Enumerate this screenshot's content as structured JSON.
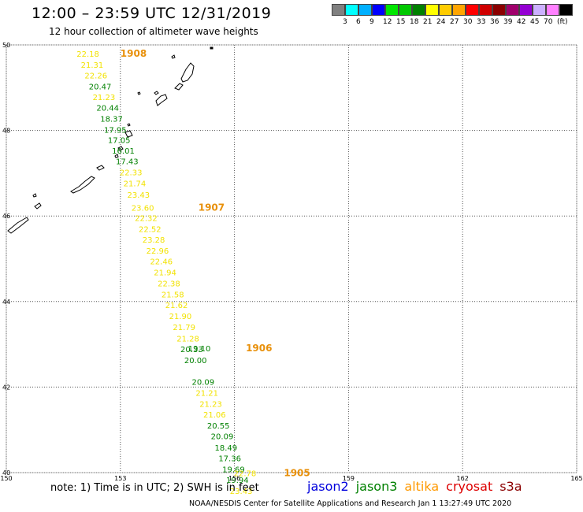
{
  "header": {
    "title": "12:00 – 23:59 UTC 12/31/2019",
    "subtitle": "12 hour collection of altimeter wave heights"
  },
  "legend": {
    "unit": "(ft)",
    "bins": [
      {
        "label": "",
        "color": "#808080"
      },
      {
        "label": "3",
        "color": "#00ffff"
      },
      {
        "label": "6",
        "color": "#00b0ff"
      },
      {
        "label": "9",
        "color": "#0000ff"
      },
      {
        "label": "12",
        "color": "#00e600"
      },
      {
        "label": "15",
        "color": "#00c800"
      },
      {
        "label": "18",
        "color": "#008000"
      },
      {
        "label": "21",
        "color": "#ffff00"
      },
      {
        "label": "24",
        "color": "#ffcc00"
      },
      {
        "label": "27",
        "color": "#ffa500"
      },
      {
        "label": "30",
        "color": "#ff0000"
      },
      {
        "label": "33",
        "color": "#d00000"
      },
      {
        "label": "36",
        "color": "#8b0000"
      },
      {
        "label": "39",
        "color": "#a0006c"
      },
      {
        "label": "42",
        "color": "#9400d3"
      },
      {
        "label": "45",
        "color": "#ccb0ff"
      },
      {
        "label": "70",
        "color": "#ff80ff"
      },
      {
        "label": "",
        "color": "#000000"
      }
    ]
  },
  "map": {
    "lon_range": [
      150,
      165
    ],
    "lat_range": [
      40,
      50
    ],
    "lon_ticks": [
      "150",
      "153",
      "156",
      "159",
      "162",
      "165"
    ],
    "lat_ticks": [
      "40",
      "42",
      "44",
      "46",
      "48",
      "50"
    ],
    "colors": {
      "green": "#008000",
      "yellow": "#f2e200",
      "orange": "#e8900a",
      "grid": "#555555",
      "land": "#000000"
    },
    "time_labels": [
      {
        "text": "1908",
        "lon": 153.0,
        "lat": 49.72
      },
      {
        "text": "1907",
        "lon": 155.05,
        "lat": 46.12
      },
      {
        "text": "1906",
        "lon": 156.3,
        "lat": 42.84
      },
      {
        "text": "1905",
        "lon": 157.3,
        "lat": 39.92
      }
    ],
    "waves": [
      {
        "v": "22.18",
        "lon": 151.85,
        "lat": 49.72,
        "c": "yellow"
      },
      {
        "v": "21.31",
        "lon": 151.96,
        "lat": 49.47,
        "c": "yellow"
      },
      {
        "v": "22.26",
        "lon": 152.06,
        "lat": 49.22,
        "c": "yellow"
      },
      {
        "v": "20.47",
        "lon": 152.17,
        "lat": 48.96,
        "c": "green"
      },
      {
        "v": "21.23",
        "lon": 152.27,
        "lat": 48.71,
        "c": "yellow"
      },
      {
        "v": "20.44",
        "lon": 152.37,
        "lat": 48.46,
        "c": "green"
      },
      {
        "v": "18.37",
        "lon": 152.47,
        "lat": 48.2,
        "c": "green"
      },
      {
        "v": "17.95",
        "lon": 152.57,
        "lat": 47.95,
        "c": "green"
      },
      {
        "v": "17.05",
        "lon": 152.67,
        "lat": 47.71,
        "c": "green"
      },
      {
        "v": "16.01",
        "lon": 152.78,
        "lat": 47.46,
        "c": "green"
      },
      {
        "v": "17.43",
        "lon": 152.88,
        "lat": 47.21,
        "c": "green"
      },
      {
        "v": "22.33",
        "lon": 152.98,
        "lat": 46.95,
        "c": "yellow"
      },
      {
        "v": "21.74",
        "lon": 153.08,
        "lat": 46.69,
        "c": "yellow"
      },
      {
        "v": "23.43",
        "lon": 153.18,
        "lat": 46.43,
        "c": "yellow"
      },
      {
        "v": "23.60",
        "lon": 153.29,
        "lat": 46.12,
        "c": "yellow"
      },
      {
        "v": "22.32",
        "lon": 153.38,
        "lat": 45.88,
        "c": "yellow"
      },
      {
        "v": "22.52",
        "lon": 153.48,
        "lat": 45.63,
        "c": "yellow"
      },
      {
        "v": "23.28",
        "lon": 153.58,
        "lat": 45.38,
        "c": "yellow"
      },
      {
        "v": "22.96",
        "lon": 153.68,
        "lat": 45.12,
        "c": "yellow"
      },
      {
        "v": "22.46",
        "lon": 153.78,
        "lat": 44.87,
        "c": "yellow"
      },
      {
        "v": "21.94",
        "lon": 153.88,
        "lat": 44.61,
        "c": "yellow"
      },
      {
        "v": "22.38",
        "lon": 153.98,
        "lat": 44.36,
        "c": "yellow"
      },
      {
        "v": "21.58",
        "lon": 154.08,
        "lat": 44.1,
        "c": "yellow"
      },
      {
        "v": "21.62",
        "lon": 154.18,
        "lat": 43.85,
        "c": "yellow"
      },
      {
        "v": "21.90",
        "lon": 154.28,
        "lat": 43.59,
        "c": "yellow"
      },
      {
        "v": "21.79",
        "lon": 154.38,
        "lat": 43.33,
        "c": "yellow"
      },
      {
        "v": "21.28",
        "lon": 154.48,
        "lat": 43.07,
        "c": "yellow"
      },
      {
        "v": "20.33",
        "lon": 154.58,
        "lat": 42.82,
        "c": "green"
      },
      {
        "v": "20.00",
        "lon": 154.68,
        "lat": 42.56,
        "c": "green"
      },
      {
        "v": "19.10",
        "lon": 154.78,
        "lat": 42.84,
        "c": "green"
      },
      {
        "v": "20.09",
        "lon": 154.88,
        "lat": 42.05,
        "c": "green"
      },
      {
        "v": "21.21",
        "lon": 154.98,
        "lat": 41.8,
        "c": "yellow"
      },
      {
        "v": "21.23",
        "lon": 155.08,
        "lat": 41.54,
        "c": "yellow"
      },
      {
        "v": "21.06",
        "lon": 155.18,
        "lat": 41.29,
        "c": "yellow"
      },
      {
        "v": "20.55",
        "lon": 155.28,
        "lat": 41.03,
        "c": "green"
      },
      {
        "v": "20.09",
        "lon": 155.38,
        "lat": 40.78,
        "c": "green"
      },
      {
        "v": "18.49",
        "lon": 155.48,
        "lat": 40.52,
        "c": "green"
      },
      {
        "v": "17.36",
        "lon": 155.58,
        "lat": 40.27,
        "c": "green"
      },
      {
        "v": "19.69",
        "lon": 155.68,
        "lat": 40.01,
        "c": "green"
      },
      {
        "v": "19.94",
        "lon": 155.78,
        "lat": 39.76,
        "c": "green"
      },
      {
        "v": "23.43",
        "lon": 155.88,
        "lat": 39.5,
        "c": "yellow"
      },
      {
        "v": "22.78",
        "lon": 155.98,
        "lat": 39.92,
        "c": "yellow"
      }
    ]
  },
  "footer": {
    "note": "note: 1) Time is in UTC; 2) SWH is in feet",
    "satellites": [
      {
        "name": "jason2",
        "color": "#0000dd"
      },
      {
        "name": "jason3",
        "color": "#008000"
      },
      {
        "name": "altika",
        "color": "#ff9900"
      },
      {
        "name": "cryosat",
        "color": "#dd0000"
      },
      {
        "name": "s3a",
        "color": "#8b0000"
      }
    ],
    "credit": "NOAA/NESDIS Center for Satellite Applications and Research    Jan  1 13:27:49 UTC 2020"
  }
}
